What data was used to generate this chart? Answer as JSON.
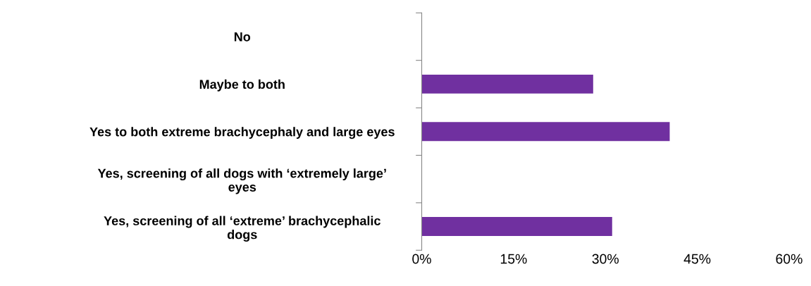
{
  "chart_data": {
    "type": "bar",
    "orientation": "horizontal",
    "categories": [
      "No",
      "Maybe to both",
      "Yes to both extreme brachycephaly and large eyes",
      "Yes, screening of all dogs with ‘extremely large’\neyes",
      "Yes, screening of all ‘extreme’ brachycephalic\ndogs"
    ],
    "values": [
      0,
      28,
      40.5,
      0,
      31.1
    ],
    "color": "#7030a0",
    "xlim": [
      0,
      60
    ],
    "xticks": [
      {
        "value": 0,
        "label": "0%"
      },
      {
        "value": 15,
        "label": "15%"
      },
      {
        "value": 30,
        "label": "30%"
      },
      {
        "value": 45,
        "label": "45%"
      },
      {
        "value": 60,
        "label": "60%"
      }
    ],
    "grid": false,
    "legend": false
  }
}
